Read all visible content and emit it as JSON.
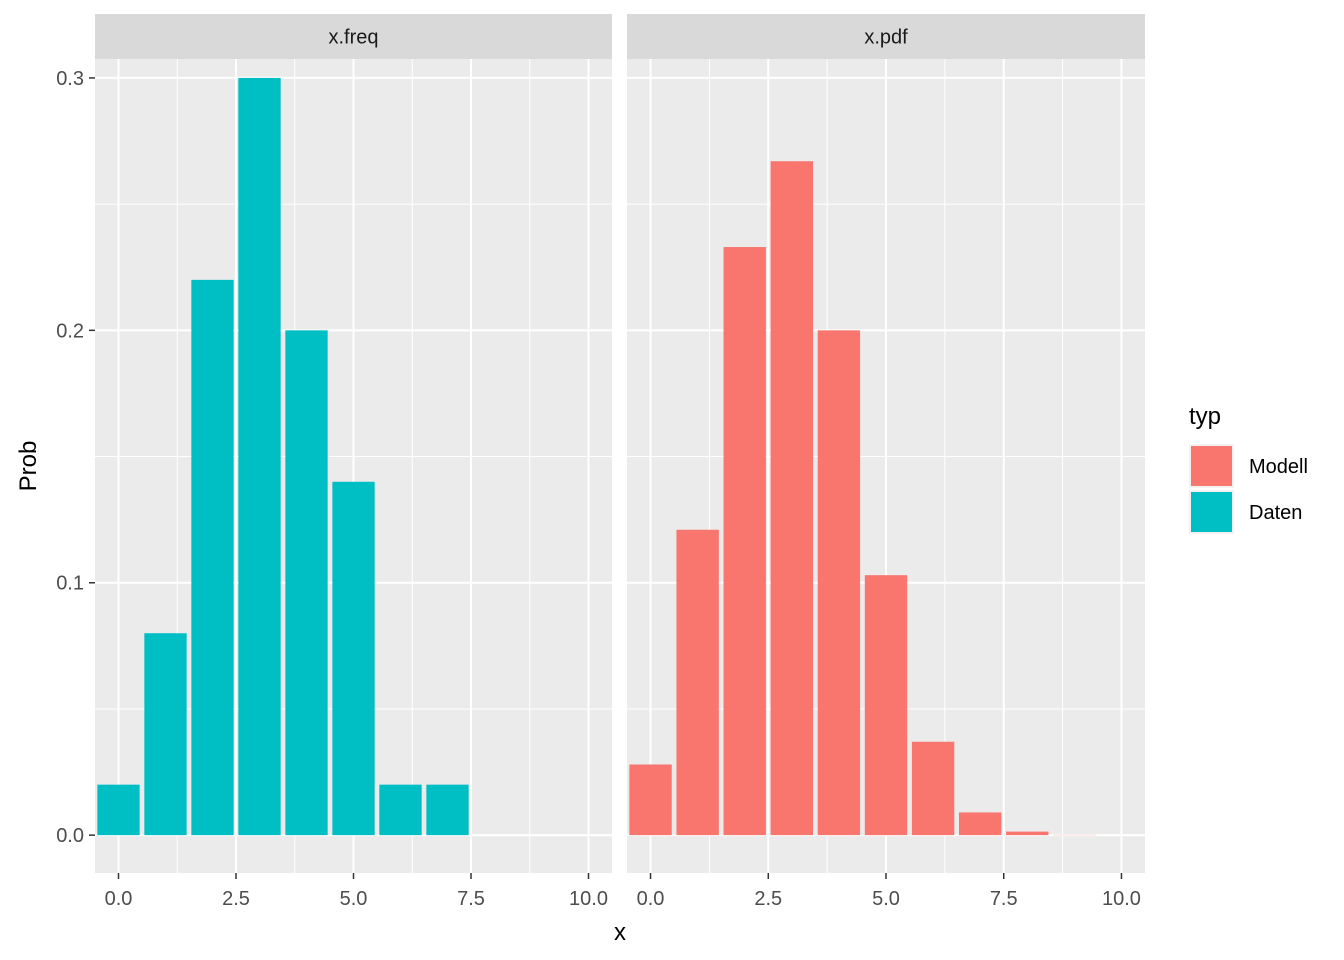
{
  "chart_data": {
    "type": "bar",
    "xlabel": "x",
    "ylabel": "Prob",
    "xlim": [
      -0.5,
      10.5
    ],
    "ylim": [
      0,
      0.3
    ],
    "x_ticks": [
      "0.0",
      "2.5",
      "5.0",
      "7.5",
      "10.0"
    ],
    "y_ticks": [
      "0.0",
      "0.1",
      "0.2",
      "0.3"
    ],
    "grid": true,
    "facets": [
      {
        "label": "x.freq",
        "series": "Daten",
        "x": [
          0,
          1,
          2,
          3,
          4,
          5,
          6,
          7,
          8,
          9,
          10
        ],
        "values": [
          0.02,
          0.08,
          0.22,
          0.3,
          0.2,
          0.14,
          0.02,
          0.02,
          0,
          0,
          0
        ]
      },
      {
        "label": "x.pdf",
        "series": "Modell",
        "x": [
          0,
          1,
          2,
          3,
          4,
          5,
          6,
          7,
          8,
          9,
          10
        ],
        "values": [
          0.028,
          0.121,
          0.233,
          0.267,
          0.2,
          0.103,
          0.037,
          0.009,
          0.0014,
          0.0001,
          0.0
        ]
      }
    ],
    "legend": {
      "title": "typ",
      "position": "right",
      "entries": [
        {
          "label": "Modell",
          "color": "#F8766D"
        },
        {
          "label": "Daten",
          "color": "#00BFC4"
        }
      ]
    }
  }
}
